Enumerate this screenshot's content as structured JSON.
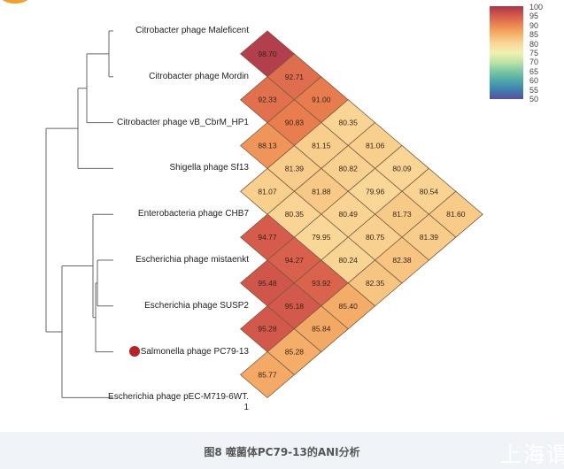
{
  "chart_data": {
    "type": "heatmap",
    "title": "",
    "labels": [
      "Citrobacter phage Maleficent",
      "Citrobacter phage Mordin",
      "Citrobacter phage vB_CbrM_HP1",
      "Shigella phage Sf13",
      "Enterobacteria phage CHB7",
      "Escherichia phage mistaenkt",
      "Escherichia phage SUSP2",
      "Salmonella phage PC79-13",
      "Escherichia phage pEC-M719-6WT.1"
    ],
    "label_lines": [
      [
        "Citrobacter phage Maleficent"
      ],
      [
        "Citrobacter phage Mordin"
      ],
      [
        "Citrobacter phage vB_CbrM_HP1"
      ],
      [
        "Shigella phage Sf13"
      ],
      [
        "Enterobacteria phage CHB7"
      ],
      [
        "Escherichia phage mistaenkt"
      ],
      [
        "Escherichia phage SUSP2"
      ],
      [
        "Salmonella phage PC79-13"
      ],
      [
        "Escherichia phage pEC-M719-6WT.",
        "1"
      ]
    ],
    "highlighted_label_index": 7,
    "cells": [
      [
        0,
        1,
        "98.70"
      ],
      [
        0,
        2,
        "92.71"
      ],
      [
        0,
        3,
        "91.00"
      ],
      [
        0,
        4,
        "80.35"
      ],
      [
        0,
        5,
        "81.06"
      ],
      [
        0,
        6,
        "80.09"
      ],
      [
        0,
        7,
        "80.54"
      ],
      [
        0,
        8,
        "81.60"
      ],
      [
        1,
        2,
        "92.33"
      ],
      [
        1,
        3,
        "90.83"
      ],
      [
        1,
        4,
        "81.15"
      ],
      [
        1,
        5,
        "80.82"
      ],
      [
        1,
        6,
        "79.96"
      ],
      [
        1,
        7,
        "81.73"
      ],
      [
        1,
        8,
        "81.39"
      ],
      [
        2,
        3,
        "88.13"
      ],
      [
        2,
        4,
        "81.39"
      ],
      [
        2,
        5,
        "81.88"
      ],
      [
        2,
        6,
        "80.49"
      ],
      [
        2,
        7,
        "80.75"
      ],
      [
        2,
        8,
        "82.38"
      ],
      [
        3,
        4,
        "81.07"
      ],
      [
        3,
        5,
        "80.35"
      ],
      [
        3,
        6,
        "79.95"
      ],
      [
        3,
        7,
        "80.24"
      ],
      [
        3,
        8,
        "82.35"
      ],
      [
        4,
        5,
        "94.77"
      ],
      [
        4,
        6,
        "94.27"
      ],
      [
        4,
        7,
        "93.92"
      ],
      [
        4,
        8,
        "85.40"
      ],
      [
        5,
        6,
        "95.48"
      ],
      [
        5,
        7,
        "95.18"
      ],
      [
        5,
        8,
        "85.84"
      ],
      [
        6,
        7,
        "95.28"
      ],
      [
        6,
        8,
        "85.28"
      ],
      [
        7,
        8,
        "85.77"
      ]
    ],
    "colorbar": {
      "range": [
        50,
        100
      ],
      "ticks": [
        "100",
        "95",
        "90",
        "85",
        "80",
        "75",
        "70",
        "65",
        "60",
        "55",
        "50"
      ],
      "colors": [
        "#5b4f9c",
        "#3f7fb1",
        "#4fa9a8",
        "#7cc7a4",
        "#bde4a6",
        "#f1f1b0",
        "#f9d797",
        "#f5b06a",
        "#ec8550",
        "#d45a4c",
        "#a8344c"
      ]
    },
    "grid": false
  },
  "caption": "图8 噬菌体PC79-13的ANI分析",
  "watermark": "上海谓"
}
